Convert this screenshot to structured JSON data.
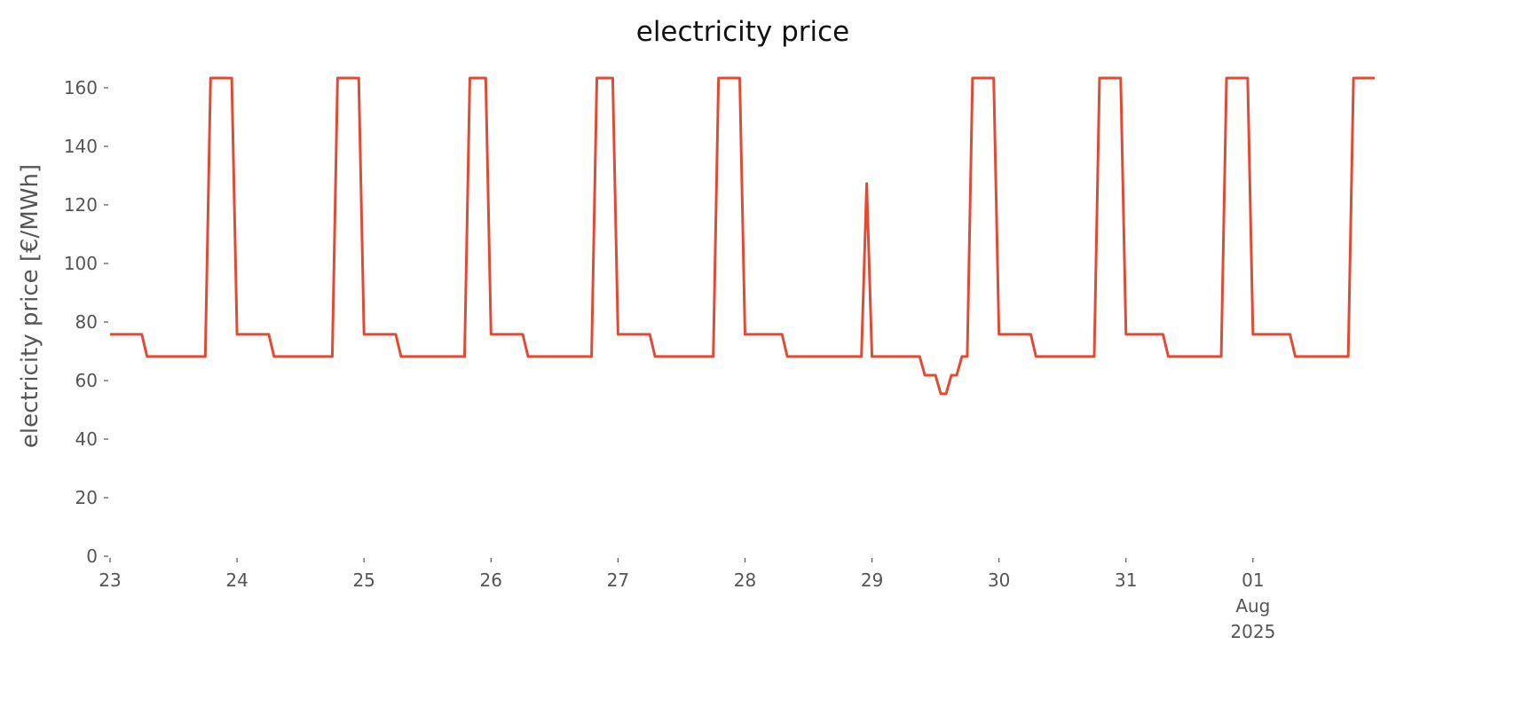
{
  "chart_data": {
    "type": "line",
    "title": "electricity price",
    "ylabel": "electricity price [€/MWh]",
    "color": "#e24a33",
    "x": [
      "2025-07-23 00:00",
      "2025-07-23 06:00",
      "2025-07-23 07:00",
      "2025-07-23 18:00",
      "2025-07-23 19:00",
      "2025-07-23 23:00",
      "2025-07-24 00:00",
      "2025-07-24 06:00",
      "2025-07-24 07:00",
      "2025-07-24 18:00",
      "2025-07-24 19:00",
      "2025-07-24 23:00",
      "2025-07-25 00:00",
      "2025-07-25 06:00",
      "2025-07-25 07:00",
      "2025-07-25 19:00",
      "2025-07-25 20:00",
      "2025-07-25 23:00",
      "2025-07-26 00:00",
      "2025-07-26 06:00",
      "2025-07-26 07:00",
      "2025-07-26 19:00",
      "2025-07-26 20:00",
      "2025-07-26 23:00",
      "2025-07-27 00:00",
      "2025-07-27 06:00",
      "2025-07-27 07:00",
      "2025-07-27 18:00",
      "2025-07-27 19:00",
      "2025-07-27 23:00",
      "2025-07-28 00:00",
      "2025-07-28 07:00",
      "2025-07-28 08:00",
      "2025-07-28 22:00",
      "2025-07-28 23:00",
      "2025-07-29 00:00",
      "2025-07-29 09:00",
      "2025-07-29 10:00",
      "2025-07-29 12:00",
      "2025-07-29 13:00",
      "2025-07-29 14:00",
      "2025-07-29 15:00",
      "2025-07-29 16:00",
      "2025-07-29 17:00",
      "2025-07-29 18:00",
      "2025-07-29 19:00",
      "2025-07-29 23:00",
      "2025-07-30 00:00",
      "2025-07-30 06:00",
      "2025-07-30 07:00",
      "2025-07-30 18:00",
      "2025-07-30 19:00",
      "2025-07-30 23:00",
      "2025-07-31 00:00",
      "2025-07-31 07:00",
      "2025-07-31 08:00",
      "2025-07-31 18:00",
      "2025-07-31 19:00",
      "2025-07-31 23:00",
      "2025-08-01 00:00",
      "2025-08-01 07:00",
      "2025-08-01 08:00",
      "2025-08-01 18:00",
      "2025-08-01 19:00",
      "2025-08-01 23:00"
    ],
    "values": [
      75.8,
      75.8,
      68.2,
      68.2,
      163.3,
      163.3,
      75.8,
      75.8,
      68.2,
      68.2,
      163.3,
      163.3,
      75.8,
      75.8,
      68.2,
      68.2,
      163.3,
      163.3,
      75.8,
      75.8,
      68.2,
      68.2,
      163.3,
      163.3,
      75.8,
      75.8,
      68.2,
      68.2,
      163.3,
      163.3,
      75.8,
      75.8,
      68.2,
      68.2,
      127.3,
      68.2,
      68.2,
      61.8,
      61.8,
      55.5,
      55.5,
      61.8,
      61.8,
      68.2,
      68.2,
      163.3,
      163.3,
      75.8,
      75.8,
      68.2,
      68.2,
      163.3,
      163.3,
      75.8,
      75.8,
      68.2,
      68.2,
      163.3,
      163.3,
      75.8,
      75.8,
      68.2,
      68.2,
      163.3,
      163.3
    ],
    "xlim": [
      "2025-07-23 00:00",
      "2025-08-01 23:00"
    ],
    "xticks": [
      {
        "value": "2025-07-23 00:00",
        "label": "23"
      },
      {
        "value": "2025-07-24 00:00",
        "label": "24"
      },
      {
        "value": "2025-07-25 00:00",
        "label": "25"
      },
      {
        "value": "2025-07-26 00:00",
        "label": "26"
      },
      {
        "value": "2025-07-27 00:00",
        "label": "27"
      },
      {
        "value": "2025-07-28 00:00",
        "label": "28"
      },
      {
        "value": "2025-07-29 00:00",
        "label": "29"
      },
      {
        "value": "2025-07-30 00:00",
        "label": "30"
      },
      {
        "value": "2025-07-31 00:00",
        "label": "31"
      },
      {
        "value": "2025-08-01 00:00",
        "label": "01\nAug\n2025"
      }
    ],
    "ylim": [
      0,
      171.5
    ],
    "yticks": [
      0,
      20,
      40,
      60,
      80,
      100,
      120,
      140,
      160
    ],
    "grid": false
  }
}
